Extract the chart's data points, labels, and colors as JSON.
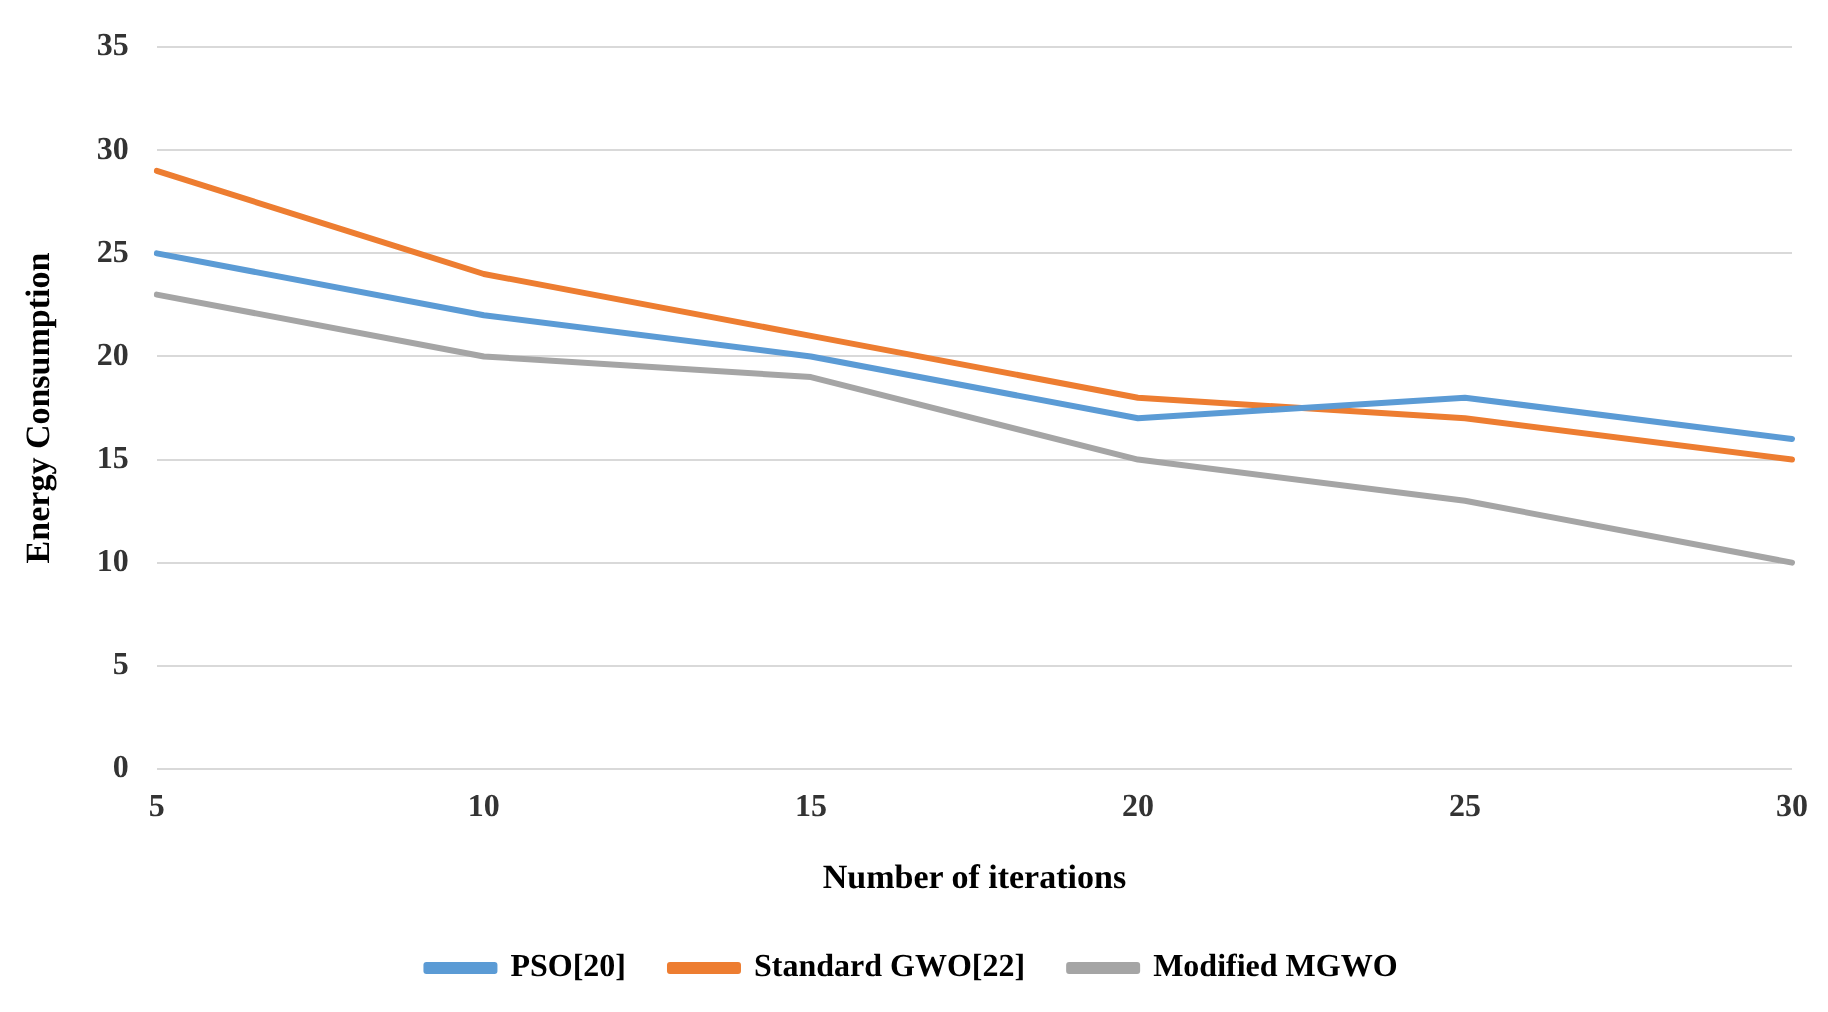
{
  "chart_data": {
    "type": "line",
    "xlabel": "Number of iterations",
    "ylabel": "Energy Consumption",
    "categories": [
      "5",
      "10",
      "15",
      "20",
      "25",
      "30"
    ],
    "series": [
      {
        "name": "PSO[20]",
        "color": "#5b9bd5",
        "values": [
          25,
          22,
          20,
          17,
          18,
          16
        ]
      },
      {
        "name": "Standard GWO[22]",
        "color": "#ed7d31",
        "values": [
          29,
          24,
          21,
          18,
          17,
          15
        ]
      },
      {
        "name": "Modified MGWO",
        "color": "#a5a5a5",
        "values": [
          23,
          20,
          19,
          15,
          13,
          10
        ]
      }
    ],
    "ylim": [
      0,
      35
    ],
    "yticks": [
      0,
      5,
      10,
      15,
      20,
      25,
      30,
      35
    ],
    "grid": "y",
    "legend": "bottom",
    "marker": "none",
    "line_style": "solid"
  }
}
